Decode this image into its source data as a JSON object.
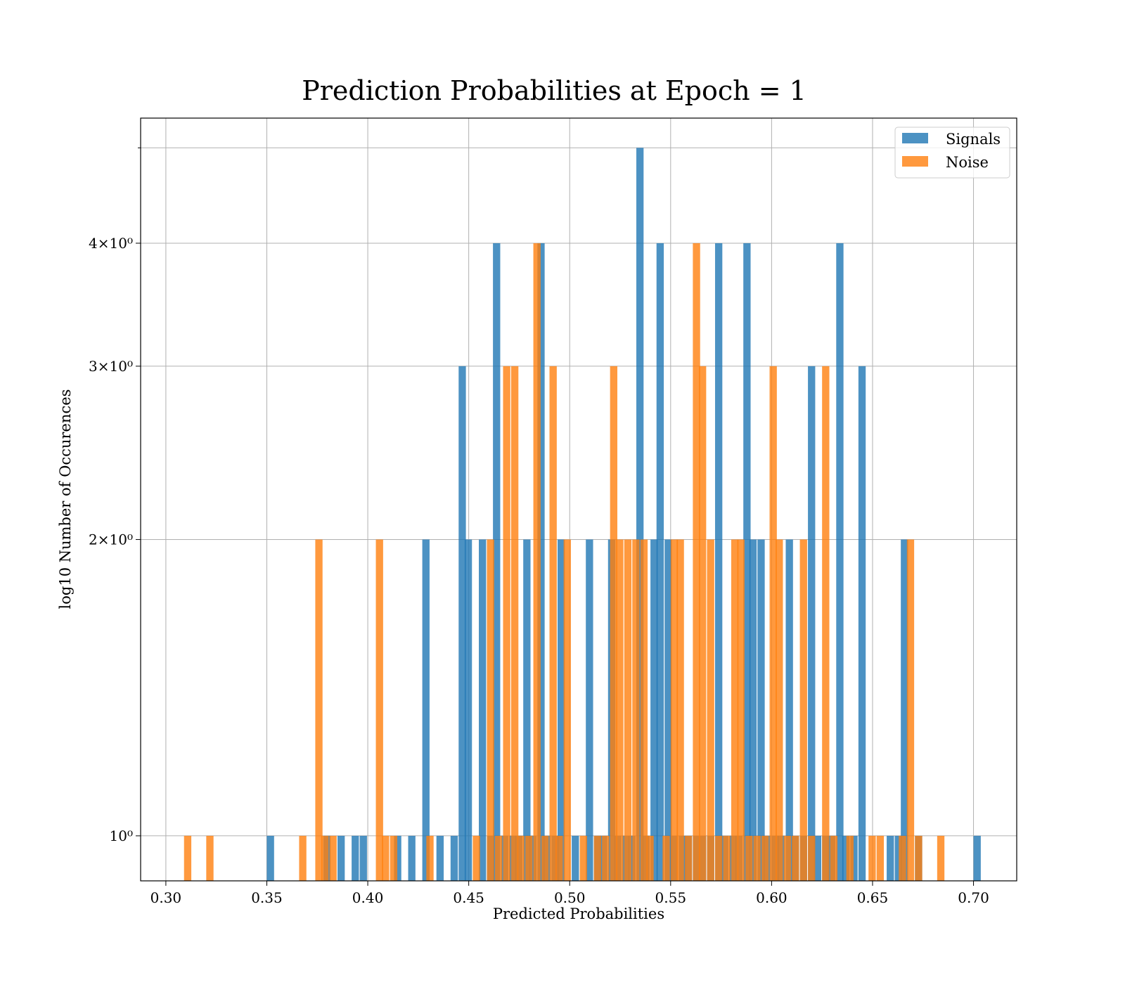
{
  "chart_data": {
    "type": "bar",
    "subtype": "overlaid histogram",
    "title": "Prediction Probabilities at Epoch = 1",
    "xlabel": "Predicted Probabilities",
    "ylabel": "log10 Number of Occurences",
    "yscale": "log",
    "xlim": [
      0.2875,
      0.7214
    ],
    "ylim": [
      0.9,
      5.36
    ],
    "xticks": [
      0.3,
      0.35,
      0.4,
      0.45,
      0.5,
      0.55,
      0.6,
      0.65,
      0.7
    ],
    "xtick_labels": [
      "0.30",
      "0.35",
      "0.40",
      "0.45",
      "0.50",
      "0.55",
      "0.60",
      "0.65",
      "0.70"
    ],
    "yticks": [
      1,
      2,
      3,
      4
    ],
    "ytick_labels": [
      "10⁰",
      "2×10⁰",
      "3×10⁰",
      "4×10⁰"
    ],
    "grid": true,
    "legend_position": "top-right",
    "bin_width": 0.0036,
    "series": [
      {
        "name": "Signals",
        "color": "#1f77b4",
        "opacity": 0.8,
        "bins": [
          {
            "x": 0.35,
            "count": 1
          },
          {
            "x": 0.378,
            "count": 1
          },
          {
            "x": 0.385,
            "count": 1
          },
          {
            "x": 0.392,
            "count": 1
          },
          {
            "x": 0.396,
            "count": 1
          },
          {
            "x": 0.413,
            "count": 1
          },
          {
            "x": 0.42,
            "count": 1
          },
          {
            "x": 0.427,
            "count": 2
          },
          {
            "x": 0.434,
            "count": 1
          },
          {
            "x": 0.441,
            "count": 1
          },
          {
            "x": 0.445,
            "count": 3
          },
          {
            "x": 0.448,
            "count": 2
          },
          {
            "x": 0.455,
            "count": 2
          },
          {
            "x": 0.459,
            "count": 1
          },
          {
            "x": 0.462,
            "count": 4
          },
          {
            "x": 0.466,
            "count": 1
          },
          {
            "x": 0.47,
            "count": 1
          },
          {
            "x": 0.473,
            "count": 1
          },
          {
            "x": 0.477,
            "count": 2
          },
          {
            "x": 0.48,
            "count": 1
          },
          {
            "x": 0.484,
            "count": 4
          },
          {
            "x": 0.487,
            "count": 1
          },
          {
            "x": 0.491,
            "count": 1
          },
          {
            "x": 0.494,
            "count": 2
          },
          {
            "x": 0.501,
            "count": 1
          },
          {
            "x": 0.508,
            "count": 2
          },
          {
            "x": 0.512,
            "count": 1
          },
          {
            "x": 0.515,
            "count": 1
          },
          {
            "x": 0.519,
            "count": 2
          },
          {
            "x": 0.522,
            "count": 1
          },
          {
            "x": 0.526,
            "count": 1
          },
          {
            "x": 0.529,
            "count": 1
          },
          {
            "x": 0.533,
            "count": 5
          },
          {
            "x": 0.536,
            "count": 1
          },
          {
            "x": 0.54,
            "count": 2
          },
          {
            "x": 0.543,
            "count": 4
          },
          {
            "x": 0.547,
            "count": 2
          },
          {
            "x": 0.55,
            "count": 1
          },
          {
            "x": 0.554,
            "count": 1
          },
          {
            "x": 0.557,
            "count": 1
          },
          {
            "x": 0.561,
            "count": 1
          },
          {
            "x": 0.564,
            "count": 1
          },
          {
            "x": 0.568,
            "count": 1
          },
          {
            "x": 0.572,
            "count": 4
          },
          {
            "x": 0.575,
            "count": 1
          },
          {
            "x": 0.579,
            "count": 1
          },
          {
            "x": 0.582,
            "count": 1
          },
          {
            "x": 0.586,
            "count": 4
          },
          {
            "x": 0.589,
            "count": 2
          },
          {
            "x": 0.593,
            "count": 2
          },
          {
            "x": 0.596,
            "count": 1
          },
          {
            "x": 0.6,
            "count": 1
          },
          {
            "x": 0.603,
            "count": 1
          },
          {
            "x": 0.607,
            "count": 2
          },
          {
            "x": 0.61,
            "count": 1
          },
          {
            "x": 0.614,
            "count": 1
          },
          {
            "x": 0.618,
            "count": 3
          },
          {
            "x": 0.621,
            "count": 1
          },
          {
            "x": 0.625,
            "count": 1
          },
          {
            "x": 0.628,
            "count": 1
          },
          {
            "x": 0.632,
            "count": 4
          },
          {
            "x": 0.635,
            "count": 1
          },
          {
            "x": 0.639,
            "count": 1
          },
          {
            "x": 0.643,
            "count": 3
          },
          {
            "x": 0.657,
            "count": 1
          },
          {
            "x": 0.661,
            "count": 1
          },
          {
            "x": 0.664,
            "count": 2
          },
          {
            "x": 0.671,
            "count": 1
          },
          {
            "x": 0.7,
            "count": 1
          }
        ]
      },
      {
        "name": "Noise",
        "color": "#ff7f0e",
        "opacity": 0.8,
        "bins": [
          {
            "x": 0.309,
            "count": 1
          },
          {
            "x": 0.32,
            "count": 1
          },
          {
            "x": 0.366,
            "count": 1
          },
          {
            "x": 0.374,
            "count": 2
          },
          {
            "x": 0.377,
            "count": 1
          },
          {
            "x": 0.381,
            "count": 1
          },
          {
            "x": 0.404,
            "count": 2
          },
          {
            "x": 0.407,
            "count": 1
          },
          {
            "x": 0.411,
            "count": 1
          },
          {
            "x": 0.429,
            "count": 1
          },
          {
            "x": 0.452,
            "count": 1
          },
          {
            "x": 0.459,
            "count": 2
          },
          {
            "x": 0.463,
            "count": 1
          },
          {
            "x": 0.467,
            "count": 3
          },
          {
            "x": 0.471,
            "count": 3
          },
          {
            "x": 0.474,
            "count": 1
          },
          {
            "x": 0.478,
            "count": 1
          },
          {
            "x": 0.482,
            "count": 4
          },
          {
            "x": 0.486,
            "count": 1
          },
          {
            "x": 0.49,
            "count": 3
          },
          {
            "x": 0.493,
            "count": 1
          },
          {
            "x": 0.497,
            "count": 2
          },
          {
            "x": 0.505,
            "count": 1
          },
          {
            "x": 0.512,
            "count": 1
          },
          {
            "x": 0.516,
            "count": 1
          },
          {
            "x": 0.52,
            "count": 3
          },
          {
            "x": 0.523,
            "count": 2
          },
          {
            "x": 0.527,
            "count": 2
          },
          {
            "x": 0.531,
            "count": 2
          },
          {
            "x": 0.535,
            "count": 2
          },
          {
            "x": 0.538,
            "count": 1
          },
          {
            "x": 0.546,
            "count": 1
          },
          {
            "x": 0.55,
            "count": 2
          },
          {
            "x": 0.553,
            "count": 2
          },
          {
            "x": 0.557,
            "count": 1
          },
          {
            "x": 0.561,
            "count": 4
          },
          {
            "x": 0.564,
            "count": 3
          },
          {
            "x": 0.568,
            "count": 2
          },
          {
            "x": 0.572,
            "count": 1
          },
          {
            "x": 0.576,
            "count": 1
          },
          {
            "x": 0.58,
            "count": 2
          },
          {
            "x": 0.583,
            "count": 2
          },
          {
            "x": 0.587,
            "count": 1
          },
          {
            "x": 0.591,
            "count": 1
          },
          {
            "x": 0.595,
            "count": 1
          },
          {
            "x": 0.599,
            "count": 3
          },
          {
            "x": 0.602,
            "count": 2
          },
          {
            "x": 0.606,
            "count": 1
          },
          {
            "x": 0.61,
            "count": 1
          },
          {
            "x": 0.614,
            "count": 2
          },
          {
            "x": 0.618,
            "count": 1
          },
          {
            "x": 0.625,
            "count": 3
          },
          {
            "x": 0.629,
            "count": 1
          },
          {
            "x": 0.637,
            "count": 1
          },
          {
            "x": 0.648,
            "count": 1
          },
          {
            "x": 0.652,
            "count": 1
          },
          {
            "x": 0.663,
            "count": 1
          },
          {
            "x": 0.667,
            "count": 2
          },
          {
            "x": 0.671,
            "count": 1
          },
          {
            "x": 0.682,
            "count": 1
          }
        ]
      }
    ]
  }
}
